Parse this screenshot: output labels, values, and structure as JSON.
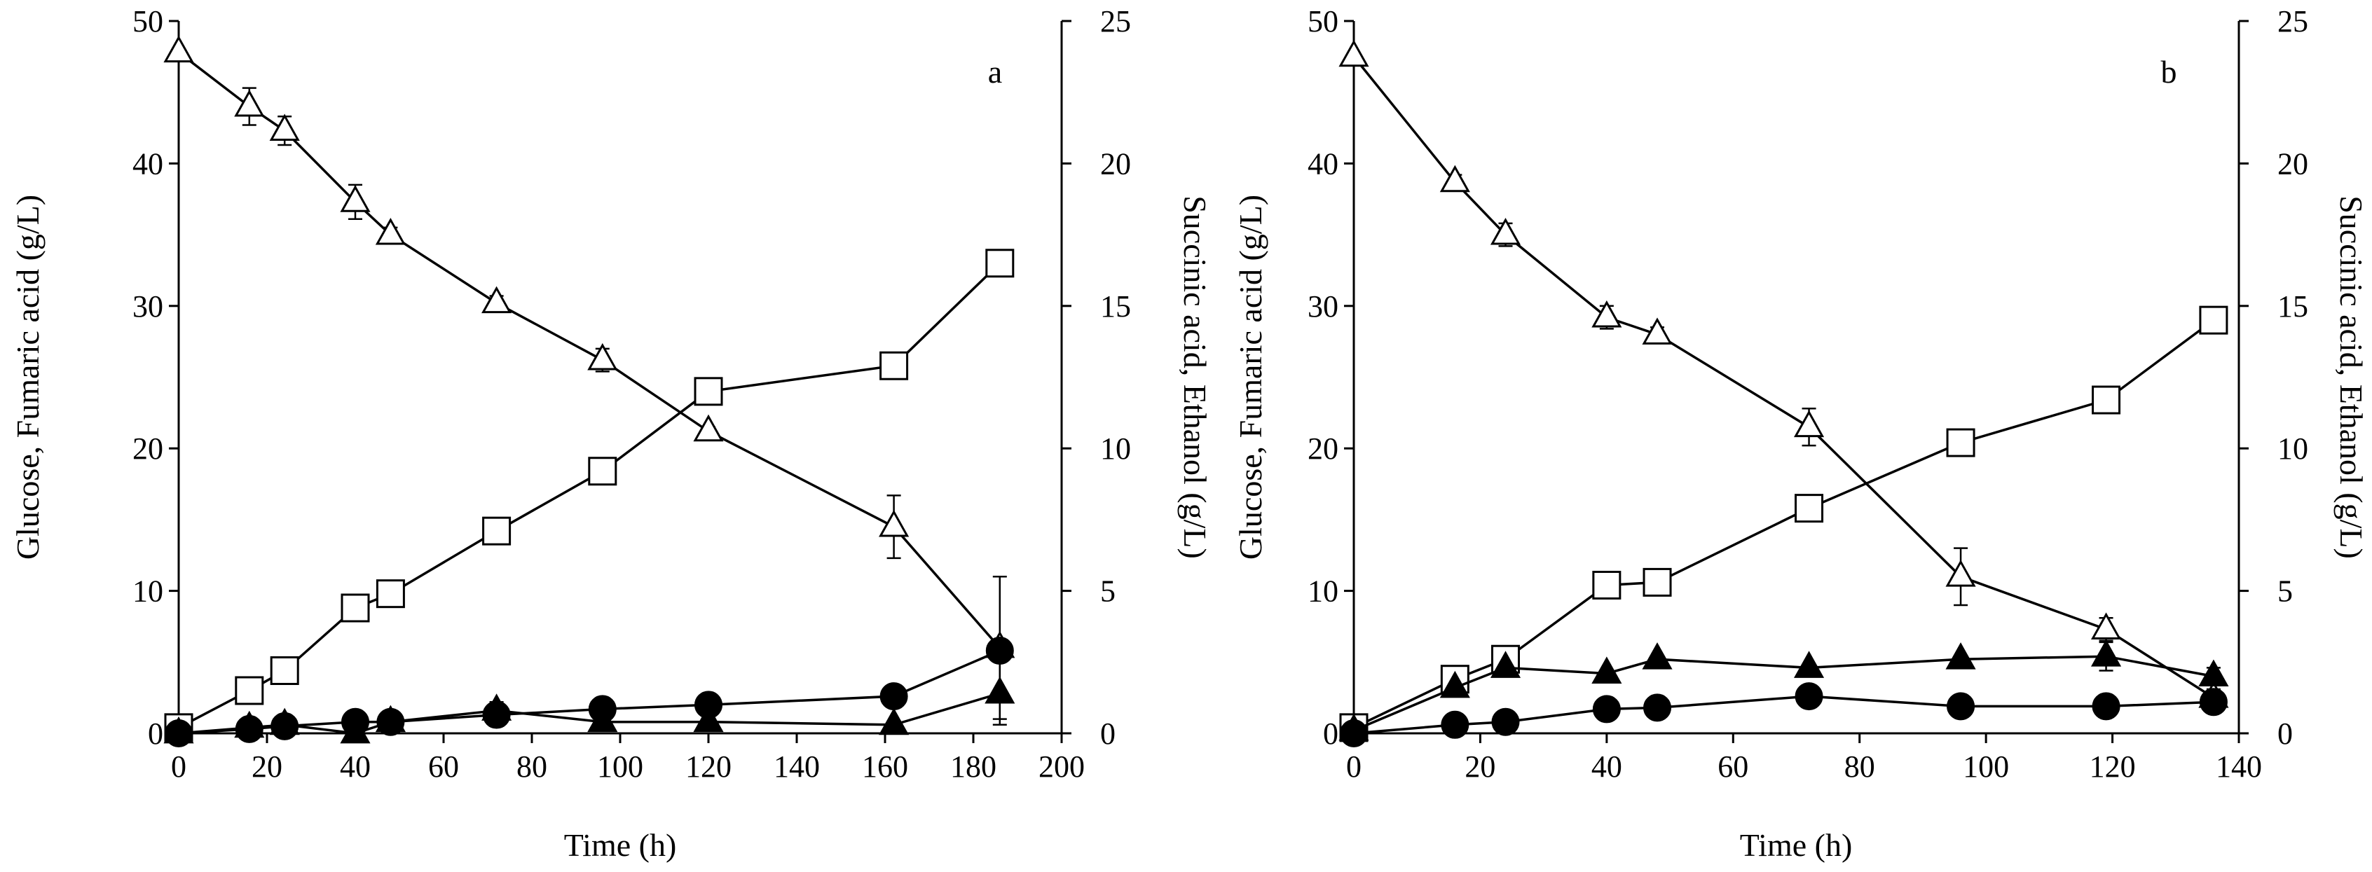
{
  "chart_data": [
    {
      "type": "line",
      "panel_label": "a",
      "xlabel": "Time (h)",
      "ylabel_left": "Glucose, Fumaric acid (g/L)",
      "ylabel_right": "Succinic acid, Ethanol (g/L)",
      "xlim": [
        0,
        200
      ],
      "ylim_left": [
        0,
        50
      ],
      "ylim_right": [
        0,
        25
      ],
      "xticks": [
        "0",
        "20",
        "40",
        "60",
        "80",
        "100",
        "120",
        "140",
        "160",
        "180",
        "200"
      ],
      "yticks_left": [
        "0",
        "10",
        "20",
        "30",
        "40",
        "50"
      ],
      "yticks_right": [
        "0",
        "5",
        "10",
        "15",
        "20",
        "25"
      ],
      "series": [
        {
          "name": "Glucose",
          "axis": "left",
          "marker": "open-triangle",
          "x": [
            0,
            16,
            24,
            40,
            48,
            72,
            96,
            120,
            162,
            186
          ],
          "y": [
            47.8,
            44.0,
            42.3,
            37.3,
            35.0,
            30.2,
            26.2,
            21.2,
            14.5,
            6.0
          ],
          "err": [
            0,
            1.3,
            1.0,
            1.2,
            0.5,
            0.5,
            0.8,
            0.3,
            2.2,
            5.0
          ]
        },
        {
          "name": "Succinic acid",
          "axis": "right",
          "marker": "open-square",
          "x": [
            0,
            16,
            24,
            40,
            48,
            72,
            96,
            120,
            162,
            186
          ],
          "y": [
            0.2,
            1.5,
            2.2,
            4.4,
            4.9,
            7.1,
            9.2,
            12.0,
            12.9,
            16.5
          ],
          "err": [
            0,
            0,
            0,
            0,
            0,
            0,
            0,
            0,
            0,
            0
          ]
        },
        {
          "name": "Fumaric acid",
          "axis": "left",
          "marker": "filled-circle",
          "x": [
            0,
            16,
            24,
            40,
            48,
            72,
            96,
            120,
            162,
            186
          ],
          "y": [
            0,
            0.3,
            0.5,
            0.8,
            0.8,
            1.3,
            1.7,
            2.0,
            2.6,
            5.8
          ],
          "err": [
            0,
            0,
            0,
            0,
            0,
            0.3,
            0,
            0,
            0.6,
            0
          ]
        },
        {
          "name": "Ethanol",
          "axis": "right",
          "marker": "filled-triangle",
          "x": [
            0,
            16,
            24,
            40,
            48,
            72,
            96,
            120,
            162,
            186
          ],
          "y": [
            0,
            0.2,
            0.3,
            0,
            0.4,
            0.8,
            0.4,
            0.4,
            0.3,
            1.4
          ],
          "err": [
            0,
            0,
            0,
            0,
            0,
            0.3,
            0,
            0,
            0,
            1.1
          ]
        }
      ]
    },
    {
      "type": "line",
      "panel_label": "b",
      "xlabel": "Time (h)",
      "ylabel_left": "Glucose, Fumaric acid (g/L)",
      "ylabel_right": "Succinic acid, Ethanol (g/L)",
      "xlim": [
        0,
        140
      ],
      "ylim_left": [
        0,
        50
      ],
      "ylim_right": [
        0,
        25
      ],
      "xticks": [
        "0",
        "20",
        "40",
        "60",
        "80",
        "100",
        "120",
        "140"
      ],
      "yticks_left": [
        "0",
        "10",
        "20",
        "30",
        "40",
        "50"
      ],
      "yticks_right": [
        "0",
        "5",
        "10",
        "15",
        "20",
        "25"
      ],
      "series": [
        {
          "name": "Glucose",
          "axis": "left",
          "marker": "open-triangle",
          "x": [
            0,
            16,
            24,
            40,
            48,
            72,
            96,
            119,
            136
          ],
          "y": [
            47.5,
            38.7,
            35.0,
            29.2,
            28.0,
            21.5,
            11.0,
            7.3,
            2.5
          ],
          "err": [
            0,
            0.5,
            0.8,
            0.8,
            0.5,
            1.3,
            2.0,
            0.8,
            0.6
          ]
        },
        {
          "name": "Succinic acid",
          "axis": "right",
          "marker": "open-square",
          "x": [
            0,
            16,
            24,
            40,
            48,
            72,
            96,
            119,
            136
          ],
          "y": [
            0.2,
            1.9,
            2.6,
            5.2,
            5.3,
            7.9,
            10.2,
            11.7,
            14.5
          ],
          "err": [
            0,
            0,
            0,
            0,
            0,
            0,
            0.4,
            0,
            0
          ]
        },
        {
          "name": "Fumaric acid",
          "axis": "left",
          "marker": "filled-circle",
          "x": [
            0,
            16,
            24,
            40,
            48,
            72,
            96,
            119,
            136
          ],
          "y": [
            0,
            0.6,
            0.8,
            1.7,
            1.8,
            2.6,
            1.9,
            1.9,
            2.2
          ],
          "err": [
            0,
            0,
            0,
            0,
            0,
            0,
            0,
            0,
            0
          ]
        },
        {
          "name": "Ethanol",
          "axis": "right",
          "marker": "filled-triangle",
          "x": [
            0,
            16,
            24,
            40,
            48,
            72,
            96,
            119,
            136
          ],
          "y": [
            0.1,
            1.6,
            2.3,
            2.1,
            2.6,
            2.3,
            2.6,
            2.7,
            2.0
          ],
          "err": [
            0,
            0,
            0,
            0,
            0,
            0,
            0,
            0.5,
            0.3
          ]
        }
      ]
    }
  ]
}
